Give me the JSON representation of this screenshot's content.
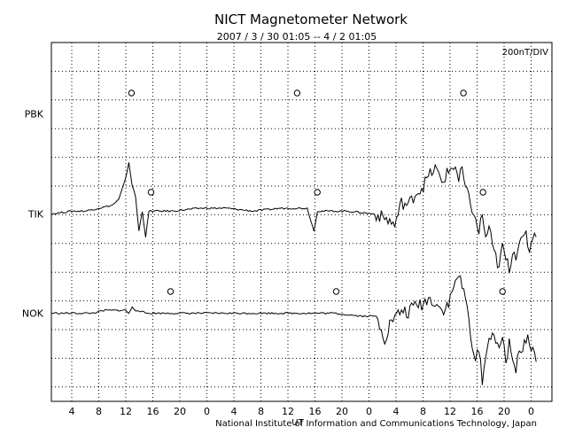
{
  "chart_data": {
    "type": "line",
    "title": "NICT Magnetometer Network",
    "subtitle": "2007 / 3 / 30   01:05 --  4 / 2   01:05",
    "scale_label": "200nT/DIV",
    "credit": "National Institute of Information and Communications Technology, Japan",
    "xlabel": "UT",
    "x_ticks": [
      "4",
      "8",
      "12",
      "16",
      "20",
      "0",
      "4",
      "8",
      "12",
      "16",
      "20",
      "0",
      "4",
      "8",
      "12",
      "16",
      "20",
      "0"
    ],
    "x_range_hours": [
      0,
      72
    ],
    "grid": true,
    "series": [
      {
        "name": "PBK",
        "note": "no data",
        "markers_hours": [
          11.9,
          36.5,
          61.2
        ],
        "values": []
      },
      {
        "name": "TIK",
        "markers_hours": [
          14.8,
          39.5,
          64.1
        ],
        "x": [
          0,
          3,
          5,
          7,
          9,
          10,
          11,
          11.5,
          12,
          12.5,
          13,
          13.5,
          14,
          14.5,
          15,
          16,
          18,
          22,
          26,
          30,
          34,
          38,
          38.5,
          39,
          39.5,
          40,
          41,
          44,
          48,
          50,
          51,
          51.5,
          52,
          53,
          54,
          55,
          56,
          57,
          58,
          59,
          60,
          60.5,
          61,
          61.5,
          62,
          62.5,
          63,
          63.5,
          64,
          64.5,
          65,
          65.5,
          66,
          66.5,
          67,
          67.5,
          68,
          68.5,
          69,
          69.5,
          70,
          70.5,
          71,
          71.5,
          72
        ],
        "values": [
          0.0,
          0.1,
          0.1,
          0.2,
          0.3,
          0.5,
          1.2,
          1.8,
          1.0,
          0.6,
          -0.6,
          0.1,
          -0.8,
          0.1,
          0.1,
          0.1,
          0.1,
          0.2,
          0.2,
          0.1,
          0.2,
          0.2,
          -0.2,
          -0.6,
          0.1,
          0.1,
          0.1,
          0.1,
          0.0,
          -0.2,
          -0.4,
          0.0,
          0.4,
          0.3,
          0.7,
          0.9,
          1.3,
          1.6,
          1.1,
          1.5,
          1.7,
          1.1,
          1.6,
          0.8,
          0.6,
          0.2,
          -0.3,
          -0.6,
          0.0,
          -0.9,
          -0.4,
          -1.2,
          -1.5,
          -1.9,
          -1.1,
          -1.6,
          -1.9,
          -1.3,
          -1.4,
          -0.9,
          -1.0,
          -0.7,
          -1.3,
          -0.7,
          -0.8
        ]
      },
      {
        "name": "NOK",
        "markers_hours": [
          17.7,
          42.3,
          67.0
        ],
        "x": [
          0,
          4,
          6,
          8,
          10,
          11,
          11.5,
          12,
          12.5,
          13,
          14,
          18,
          22,
          26,
          30,
          34,
          38,
          42,
          46,
          48,
          49,
          49.5,
          50,
          50.5,
          51,
          52,
          53,
          54,
          55,
          56,
          57,
          58,
          59,
          60,
          60.5,
          61,
          61.5,
          62,
          62.5,
          63,
          63.5,
          64,
          64.5,
          65,
          65.5,
          66,
          66.5,
          67,
          67.5,
          68,
          68.5,
          69,
          69.5,
          70,
          70.5,
          71,
          71.5,
          72
        ],
        "values": [
          0.0,
          0.0,
          0.0,
          0.1,
          0.1,
          0.1,
          0.0,
          0.2,
          0.1,
          0.1,
          0.0,
          0.0,
          0.0,
          0.0,
          0.0,
          0.0,
          0.0,
          0.0,
          -0.1,
          -0.1,
          -0.5,
          -0.9,
          -0.6,
          -0.2,
          -0.2,
          0.1,
          0.0,
          0.3,
          0.3,
          0.5,
          0.4,
          0.1,
          0.3,
          1.1,
          1.4,
          0.8,
          0.6,
          -0.3,
          -1.0,
          -1.8,
          -1.2,
          -2.3,
          -1.5,
          -1.0,
          -0.5,
          -1.0,
          -1.4,
          -0.8,
          -1.6,
          -1.1,
          -1.6,
          -1.9,
          -1.2,
          -1.3,
          -1.0,
          -0.9,
          -1.3,
          -1.7
        ]
      }
    ]
  }
}
